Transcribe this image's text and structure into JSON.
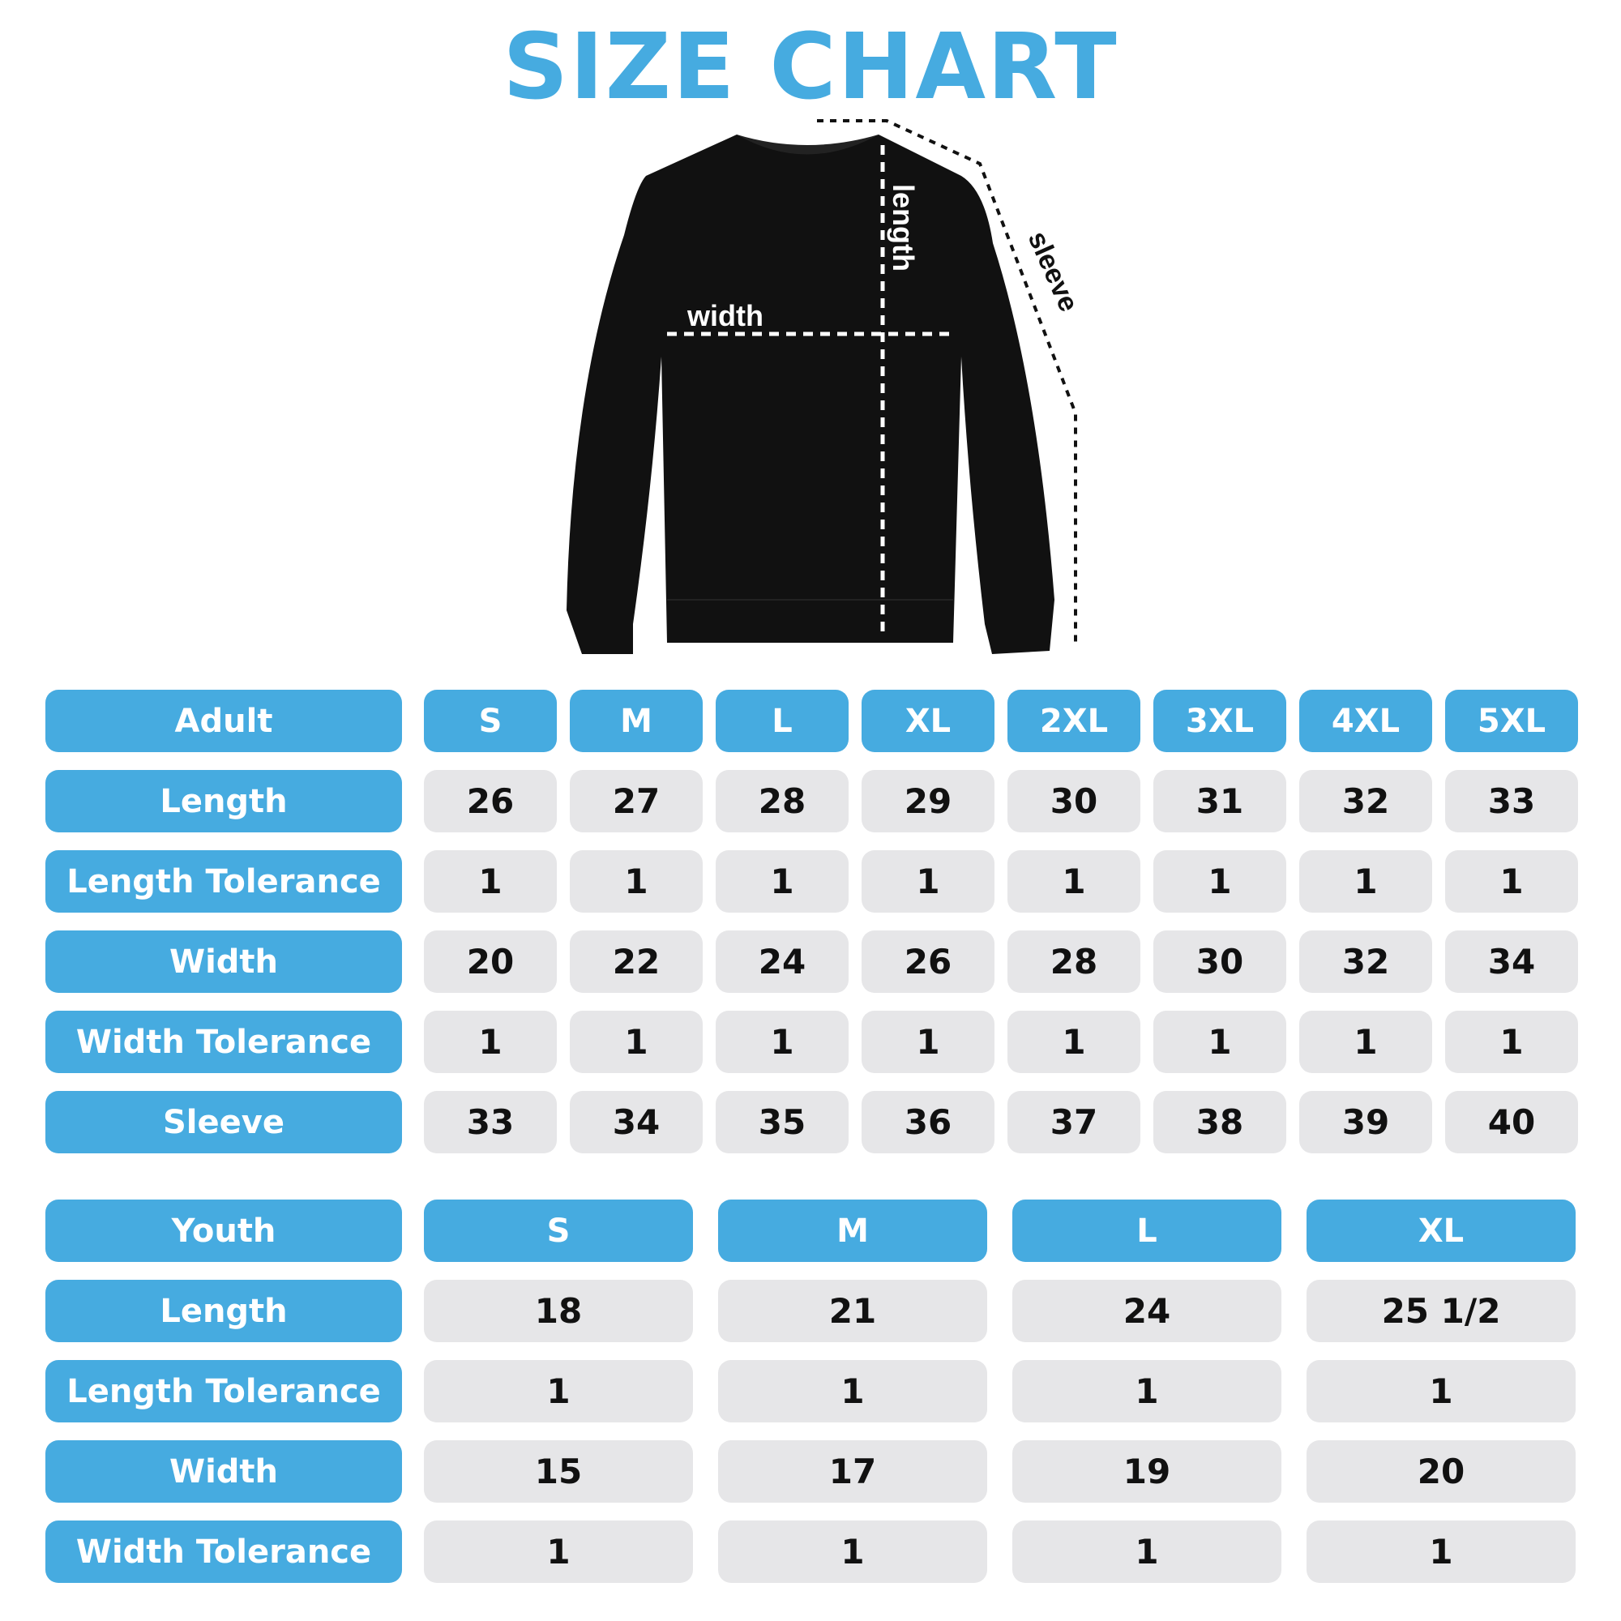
{
  "title": "SIZE CHART",
  "diagram": {
    "width_label": "width",
    "length_label": "length",
    "sleeve_label": "sleeve"
  },
  "colors": {
    "accent": "#46ABE0",
    "cell": "#E6E6E8"
  },
  "adult": {
    "header": "Adult",
    "sizes": [
      "S",
      "M",
      "L",
      "XL",
      "2XL",
      "3XL",
      "4XL",
      "5XL"
    ],
    "rows": [
      {
        "label": "Length",
        "values": [
          "26",
          "27",
          "28",
          "29",
          "30",
          "31",
          "32",
          "33"
        ]
      },
      {
        "label": "Length Tolerance",
        "values": [
          "1",
          "1",
          "1",
          "1",
          "1",
          "1",
          "1",
          "1"
        ]
      },
      {
        "label": "Width",
        "values": [
          "20",
          "22",
          "24",
          "26",
          "28",
          "30",
          "32",
          "34"
        ]
      },
      {
        "label": "Width Tolerance",
        "values": [
          "1",
          "1",
          "1",
          "1",
          "1",
          "1",
          "1",
          "1"
        ]
      },
      {
        "label": "Sleeve",
        "values": [
          "33",
          "34",
          "35",
          "36",
          "37",
          "38",
          "39",
          "40"
        ]
      }
    ]
  },
  "youth": {
    "header": "Youth",
    "sizes": [
      "S",
      "M",
      "L",
      "XL"
    ],
    "rows": [
      {
        "label": "Length",
        "values": [
          "18",
          "21",
          "24",
          "25 1/2"
        ]
      },
      {
        "label": "Length Tolerance",
        "values": [
          "1",
          "1",
          "1",
          "1"
        ]
      },
      {
        "label": "Width",
        "values": [
          "15",
          "17",
          "19",
          "20"
        ]
      },
      {
        "label": "Width Tolerance",
        "values": [
          "1",
          "1",
          "1",
          "1"
        ]
      }
    ]
  }
}
